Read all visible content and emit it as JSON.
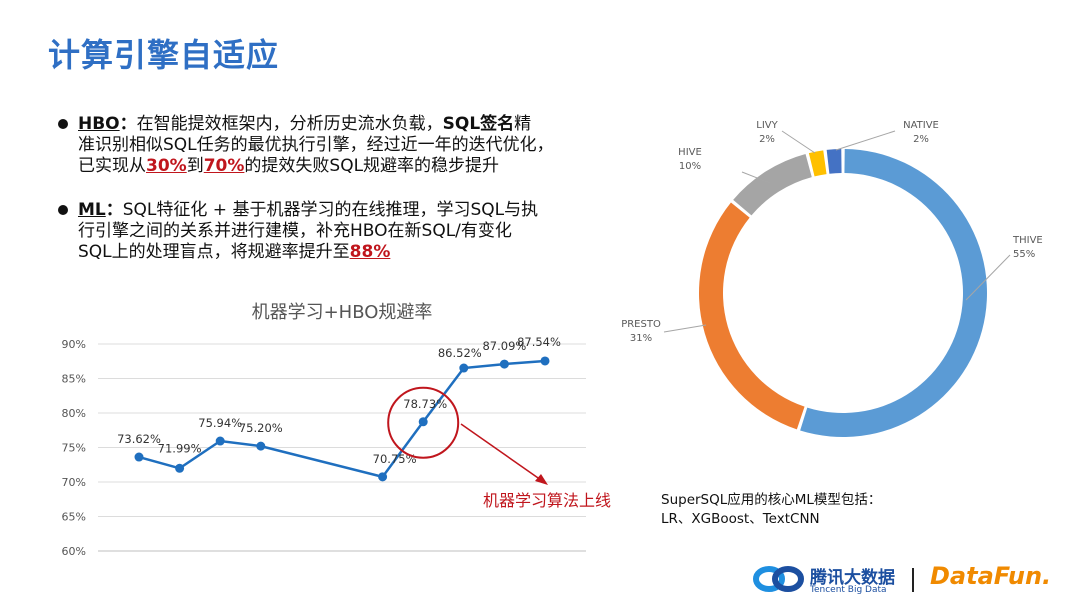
{
  "title": "计算引擎自适应",
  "bullet1": {
    "kw": "HBO",
    "colon": "：",
    "text1": "在智能提效框架内，分析历史流水负载，",
    "kw2": "SQL签名",
    "text2": "精",
    "line2": "准识别相似SQL任务的最优执行引擎，经过近一年的迭代优化，",
    "text3": "已实现从",
    "v1": "30%",
    "mid": "到",
    "v2": "70%",
    "text4": "的提效失败SQL规避率的稳步提升"
  },
  "bullet2": {
    "kw": "ML",
    "colon": "：",
    "line1": "SQL特征化 + 基于机器学习的在线推理，学习SQL与执",
    "line2": "行引擎之间的关系并进行建模，补充HBO在新SQL/有变化",
    "line3": "SQL上的处理盲点，将规避率提升至",
    "v": "88%"
  },
  "annotation": "机器学习算法上线",
  "note": {
    "line1": "SuperSQL应用的核心ML模型包括：",
    "line2": "LR、XGBoost、TextCNN"
  },
  "brand": {
    "tencent_cn": "腾讯大数据",
    "tencent_en": "Tencent Big Data",
    "sep": "|",
    "datafun": "DataFun."
  },
  "colors": {
    "title": "#2f6fc4",
    "line": "#1f6fbf",
    "highlight": "#c0161d",
    "thive": "#5b9bd5",
    "presto": "#ed7d31",
    "hive": "#a5a5a5",
    "livy": "#ffc000",
    "native": "#4472c4"
  },
  "chart_data": [
    {
      "type": "line",
      "title": "机器学习+HBO规避率",
      "y_ticks": [
        "60%",
        "65%",
        "70%",
        "75%",
        "80%",
        "85%",
        "90%"
      ],
      "ylim": [
        60,
        90
      ],
      "grid": true,
      "values": [
        73.62,
        71.99,
        75.94,
        75.2,
        null,
        null,
        70.75,
        78.73,
        86.52,
        87.09,
        87.54
      ],
      "labels": [
        "73.62%",
        "71.99%",
        "75.94%",
        "75.20%",
        "",
        "",
        "70.75%",
        "78.73%",
        "86.52%",
        "87.09%",
        "87.54%"
      ],
      "highlight_index": 7
    },
    {
      "type": "pie",
      "style": "donut",
      "slices": [
        {
          "name": "THIVE",
          "value": 55,
          "label": "55%"
        },
        {
          "name": "PRESTO",
          "value": 31,
          "label": "31%"
        },
        {
          "name": "HIVE",
          "value": 10,
          "label": "10%"
        },
        {
          "name": "LIVY",
          "value": 2,
          "label": "2%"
        },
        {
          "name": "NATIVE",
          "value": 2,
          "label": "2%"
        }
      ]
    }
  ]
}
